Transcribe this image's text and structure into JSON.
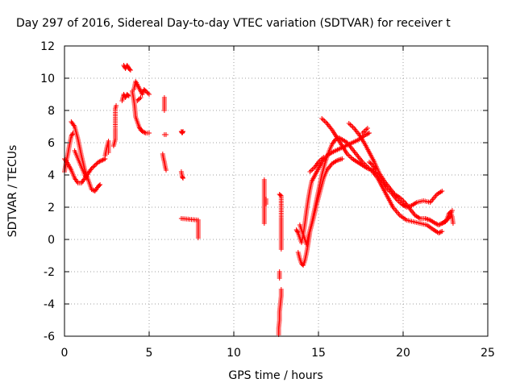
{
  "chart_data": {
    "type": "scatter",
    "title": "Day 297 of 2016, Sidereal Day-to-day VTEC variation (SDTVAR) for receiver t",
    "xlabel": "GPS time / hours",
    "ylabel": "SDTVAR / TECUs",
    "xlim": [
      0,
      25
    ],
    "ylim": [
      -6,
      12
    ],
    "xticks": [
      "0",
      "5",
      "10",
      "15",
      "20",
      "25"
    ],
    "yticks": [
      "-6",
      "-4",
      "-2",
      "0",
      "2",
      "4",
      "6",
      "8",
      "10",
      "12"
    ],
    "grid": true,
    "marker": "plus",
    "color": "#ff0000",
    "tracks": [
      [
        [
          0.0,
          4.2
        ],
        [
          0.1,
          4.8
        ],
        [
          0.2,
          5.3
        ],
        [
          0.3,
          5.9
        ],
        [
          0.4,
          6.4
        ],
        [
          0.5,
          6.6
        ]
      ],
      [
        [
          0.0,
          5.0
        ],
        [
          0.2,
          4.7
        ],
        [
          0.4,
          4.3
        ],
        [
          0.6,
          3.8
        ],
        [
          0.8,
          3.5
        ],
        [
          1.0,
          3.5
        ],
        [
          1.2,
          3.8
        ],
        [
          1.4,
          4.1
        ],
        [
          1.6,
          4.4
        ],
        [
          1.8,
          4.6
        ],
        [
          2.0,
          4.8
        ],
        [
          2.2,
          4.9
        ],
        [
          2.4,
          5.0
        ]
      ],
      [
        [
          0.4,
          7.3
        ],
        [
          0.6,
          7.0
        ],
        [
          0.8,
          6.2
        ],
        [
          1.0,
          5.2
        ],
        [
          1.2,
          4.3
        ],
        [
          1.4,
          3.7
        ],
        [
          1.5,
          3.4
        ],
        [
          1.6,
          3.1
        ],
        [
          1.8,
          3.0
        ],
        [
          2.0,
          3.3
        ],
        [
          2.1,
          3.4
        ]
      ],
      [
        [
          0.6,
          5.5
        ],
        [
          0.8,
          5.0
        ],
        [
          1.0,
          4.5
        ],
        [
          1.2,
          4.0
        ],
        [
          1.3,
          3.8
        ]
      ],
      [
        [
          2.4,
          5.2
        ],
        [
          2.5,
          5.7
        ],
        [
          2.6,
          6.1
        ],
        [
          2.6,
          5.4
        ]
      ],
      [
        [
          2.9,
          5.8
        ],
        [
          3.0,
          6.2
        ],
        [
          3.0,
          6.8
        ],
        [
          3.0,
          8.1
        ],
        [
          3.05,
          8.3
        ]
      ],
      [
        [
          3.4,
          8.6
        ],
        [
          3.5,
          9.0
        ],
        [
          3.6,
          8.8
        ],
        [
          3.7,
          9.0
        ],
        [
          3.8,
          8.9
        ]
      ],
      [
        [
          3.5,
          10.8
        ],
        [
          3.6,
          10.6
        ],
        [
          3.7,
          10.8
        ],
        [
          3.8,
          10.6
        ],
        [
          3.9,
          10.5
        ]
      ],
      [
        [
          4.0,
          9.2
        ],
        [
          4.1,
          8.6
        ],
        [
          4.15,
          8.2
        ],
        [
          4.2,
          7.6
        ],
        [
          4.3,
          7.3
        ],
        [
          4.4,
          7.0
        ],
        [
          4.5,
          6.8
        ],
        [
          4.6,
          6.7
        ],
        [
          4.8,
          6.6
        ],
        [
          5.0,
          6.6
        ]
      ],
      [
        [
          4.1,
          9.3
        ],
        [
          4.2,
          9.8
        ],
        [
          4.4,
          9.4
        ],
        [
          4.6,
          9.0
        ],
        [
          4.7,
          9.3
        ],
        [
          4.8,
          9.2
        ],
        [
          5.0,
          9.0
        ]
      ],
      [
        [
          4.3,
          8.6
        ],
        [
          4.5,
          8.8
        ]
      ],
      [
        [
          5.9,
          8.8
        ],
        [
          5.9,
          8.5
        ],
        [
          5.9,
          8.2
        ],
        [
          5.9,
          8.0
        ]
      ],
      [
        [
          5.9,
          6.5
        ],
        [
          6.0,
          6.5
        ]
      ],
      [
        [
          5.8,
          5.3
        ],
        [
          5.85,
          5.0
        ],
        [
          5.9,
          4.8
        ],
        [
          5.95,
          4.5
        ],
        [
          6.0,
          4.3
        ]
      ],
      [
        [
          6.9,
          6.7
        ],
        [
          6.95,
          6.6
        ],
        [
          7.0,
          6.7
        ]
      ],
      [
        [
          6.9,
          4.2
        ],
        [
          6.95,
          3.9
        ],
        [
          7.0,
          3.8
        ]
      ],
      [
        [
          6.9,
          1.3
        ],
        [
          7.9,
          1.2
        ],
        [
          7.9,
          1.1
        ],
        [
          7.9,
          0.1
        ]
      ],
      [
        [
          11.8,
          3.7
        ],
        [
          11.8,
          3.3
        ],
        [
          11.8,
          2.5
        ],
        [
          11.8,
          1.8
        ],
        [
          11.8,
          1.4
        ],
        [
          11.8,
          1.0
        ]
      ],
      [
        [
          11.9,
          2.5
        ],
        [
          11.9,
          2.2
        ]
      ],
      [
        [
          12.7,
          2.8
        ],
        [
          12.8,
          2.7
        ],
        [
          12.8,
          1.3
        ],
        [
          12.8,
          0.9
        ],
        [
          12.8,
          0.5
        ],
        [
          12.8,
          0.0
        ],
        [
          12.8,
          -0.6
        ]
      ],
      [
        [
          12.7,
          -2.0
        ],
        [
          12.7,
          -2.4
        ]
      ],
      [
        [
          12.8,
          -3.1
        ],
        [
          12.8,
          -3.5
        ],
        [
          12.75,
          -4.0
        ],
        [
          12.7,
          -4.5
        ],
        [
          12.7,
          -5.0
        ],
        [
          12.65,
          -5.5
        ],
        [
          12.65,
          -5.9
        ]
      ],
      [
        [
          13.7,
          0.6
        ],
        [
          13.8,
          0.4
        ],
        [
          13.9,
          0.1
        ],
        [
          14.0,
          -0.2
        ],
        [
          14.1,
          0.3
        ],
        [
          14.2,
          1.0
        ],
        [
          14.3,
          1.8
        ],
        [
          14.4,
          2.5
        ],
        [
          14.5,
          3.1
        ],
        [
          14.6,
          3.6
        ],
        [
          14.8,
          4.0
        ],
        [
          15.0,
          4.4
        ],
        [
          15.2,
          4.8
        ],
        [
          15.5,
          5.2
        ],
        [
          15.8,
          5.4
        ],
        [
          16.2,
          5.6
        ],
        [
          16.6,
          5.8
        ],
        [
          17.0,
          6.0
        ],
        [
          17.4,
          6.2
        ],
        [
          17.8,
          6.5
        ],
        [
          18.0,
          6.6
        ]
      ],
      [
        [
          13.8,
          -0.8
        ],
        [
          13.9,
          -1.2
        ],
        [
          14.0,
          -1.5
        ],
        [
          14.1,
          -1.6
        ],
        [
          14.2,
          -1.3
        ],
        [
          14.3,
          -0.8
        ],
        [
          14.4,
          -0.2
        ],
        [
          14.5,
          0.5
        ],
        [
          14.7,
          1.3
        ],
        [
          14.9,
          2.2
        ],
        [
          15.1,
          3.0
        ],
        [
          15.3,
          3.8
        ],
        [
          15.5,
          4.3
        ],
        [
          15.8,
          4.7
        ],
        [
          16.1,
          4.9
        ],
        [
          16.4,
          5.0
        ]
      ],
      [
        [
          13.9,
          0.9
        ],
        [
          14.0,
          0.6
        ],
        [
          14.1,
          0.3
        ],
        [
          14.2,
          0.0
        ],
        [
          14.3,
          -0.3
        ],
        [
          14.4,
          0.2
        ],
        [
          14.6,
          1.0
        ],
        [
          14.8,
          2.0
        ],
        [
          15.0,
          3.0
        ],
        [
          15.2,
          4.0
        ],
        [
          15.4,
          4.8
        ],
        [
          15.6,
          5.4
        ],
        [
          15.8,
          5.9
        ],
        [
          16.0,
          6.2
        ],
        [
          16.2,
          6.3
        ],
        [
          16.4,
          6.2
        ],
        [
          16.7,
          6.0
        ],
        [
          17.0,
          5.6
        ],
        [
          17.3,
          5.2
        ],
        [
          17.6,
          4.8
        ],
        [
          17.9,
          4.5
        ],
        [
          18.2,
          4.2
        ],
        [
          18.5,
          3.8
        ],
        [
          18.8,
          3.2
        ],
        [
          19.1,
          2.6
        ],
        [
          19.4,
          2.0
        ],
        [
          19.8,
          1.5
        ],
        [
          20.2,
          1.2
        ],
        [
          20.6,
          1.1
        ],
        [
          21.0,
          1.0
        ],
        [
          21.4,
          0.9
        ],
        [
          21.8,
          0.6
        ],
        [
          22.1,
          0.4
        ],
        [
          22.3,
          0.5
        ]
      ],
      [
        [
          14.5,
          4.2
        ],
        [
          14.8,
          4.5
        ],
        [
          15.0,
          4.8
        ],
        [
          15.3,
          5.1
        ]
      ],
      [
        [
          15.2,
          7.5
        ],
        [
          15.5,
          7.2
        ],
        [
          15.8,
          6.8
        ],
        [
          16.1,
          6.3
        ],
        [
          16.4,
          5.8
        ],
        [
          16.7,
          5.3
        ],
        [
          17.0,
          5.0
        ],
        [
          17.3,
          4.8
        ],
        [
          17.6,
          4.6
        ],
        [
          17.9,
          4.4
        ],
        [
          18.2,
          4.3
        ],
        [
          18.5,
          4.0
        ],
        [
          18.8,
          3.6
        ],
        [
          19.0,
          3.2
        ],
        [
          19.3,
          2.9
        ],
        [
          19.6,
          2.5
        ],
        [
          19.9,
          2.2
        ],
        [
          20.2,
          2.0
        ],
        [
          20.5,
          2.1
        ],
        [
          20.8,
          2.3
        ],
        [
          21.2,
          2.4
        ],
        [
          21.6,
          2.3
        ],
        [
          22.0,
          2.8
        ],
        [
          22.3,
          3.0
        ]
      ],
      [
        [
          16.8,
          7.2
        ],
        [
          17.1,
          6.9
        ],
        [
          17.4,
          6.5
        ],
        [
          17.7,
          6.0
        ],
        [
          18.0,
          5.4
        ],
        [
          18.3,
          4.8
        ],
        [
          18.6,
          4.1
        ],
        [
          18.9,
          3.6
        ],
        [
          19.2,
          3.2
        ],
        [
          19.5,
          2.8
        ],
        [
          19.8,
          2.6
        ],
        [
          20.1,
          2.3
        ],
        [
          20.4,
          1.9
        ],
        [
          20.7,
          1.5
        ],
        [
          21.0,
          1.3
        ],
        [
          21.3,
          1.3
        ],
        [
          21.6,
          1.2
        ],
        [
          21.9,
          1.0
        ],
        [
          22.1,
          0.9
        ],
        [
          22.3,
          1.0
        ],
        [
          22.6,
          1.2
        ],
        [
          22.8,
          1.5
        ],
        [
          22.9,
          1.8
        ]
      ],
      [
        [
          17.6,
          6.6
        ],
        [
          17.9,
          6.9
        ]
      ],
      [
        [
          18.0,
          4.8
        ],
        [
          18.2,
          4.6
        ],
        [
          18.4,
          4.3
        ]
      ],
      [
        [
          22.3,
          1.0
        ],
        [
          22.5,
          1.1
        ],
        [
          22.6,
          1.3
        ],
        [
          22.7,
          1.6
        ],
        [
          22.8,
          1.7
        ],
        [
          22.9,
          1.4
        ],
        [
          22.95,
          1.0
        ]
      ]
    ]
  }
}
